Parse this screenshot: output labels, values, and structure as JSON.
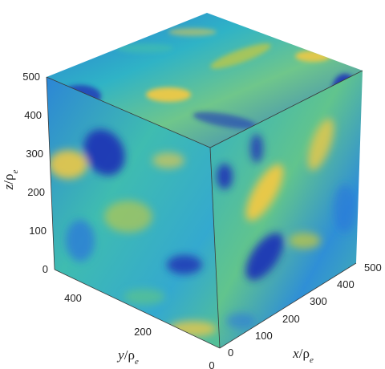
{
  "figure": {
    "z_axis": {
      "label_var": "z",
      "label_sub": "e",
      "ticks": [
        "500",
        "400",
        "300",
        "200",
        "100",
        "0"
      ]
    },
    "y_axis": {
      "label_var": "y",
      "label_sub": "e",
      "ticks": [
        "400",
        "200",
        "0"
      ]
    },
    "x_axis": {
      "label_var": "x",
      "label_sub": "e",
      "ticks": [
        "0",
        "100",
        "200",
        "300",
        "400",
        "500"
      ]
    },
    "colormap": [
      "#1f35b5",
      "#2b7bd8",
      "#22b7c9",
      "#5dc48a",
      "#c9c93a",
      "#f6c941"
    ]
  }
}
